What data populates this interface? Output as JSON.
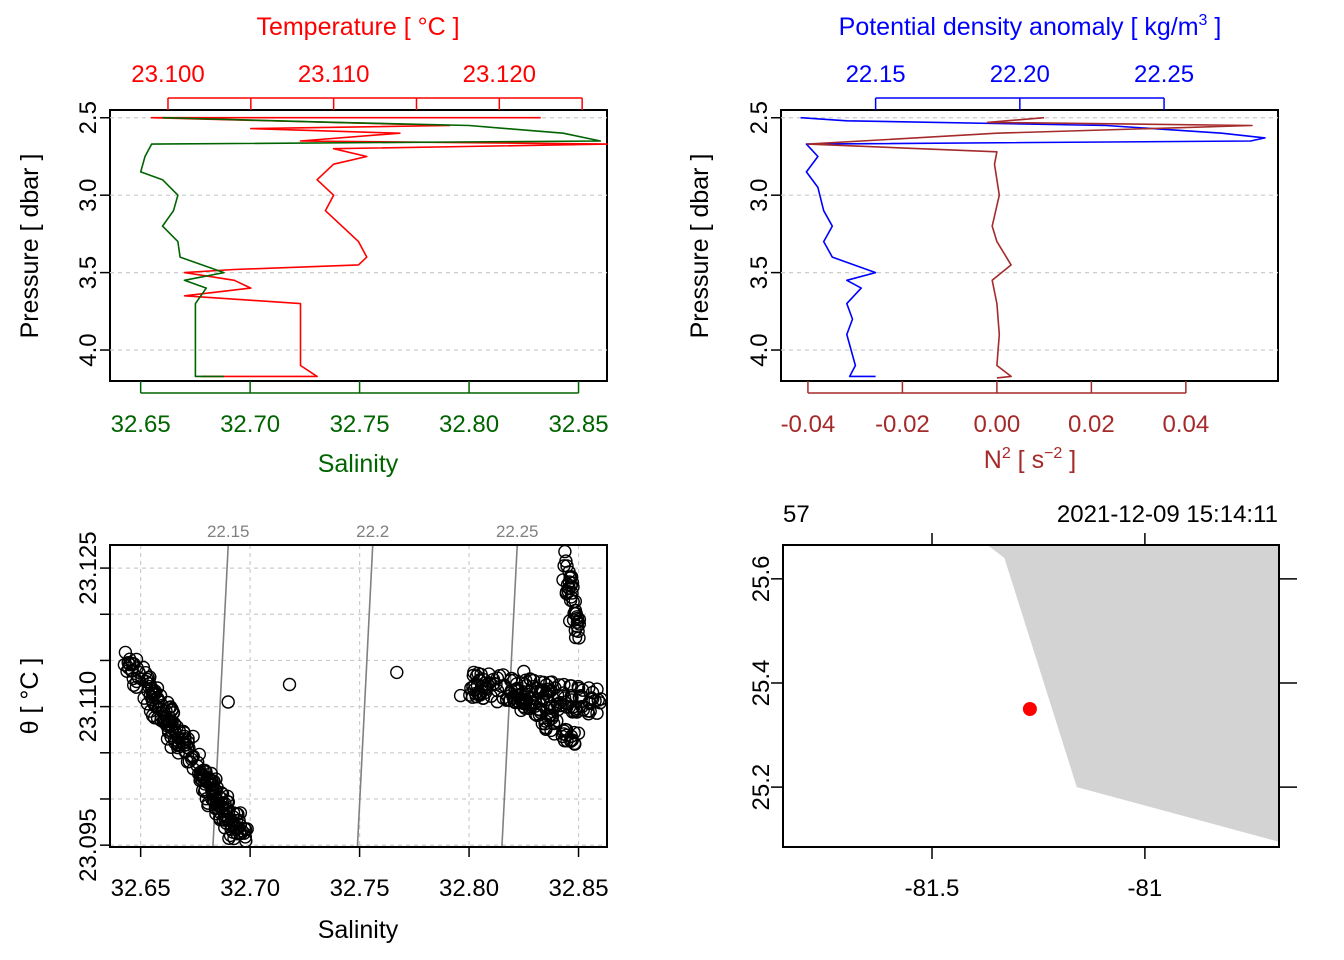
{
  "colors": {
    "temperature": "#ff0000",
    "salinity": "#006400",
    "density": "#0000ff",
    "n2": "#a52a2a",
    "coast": "#d3d3d3",
    "station": "#ff0000",
    "isopycnal": "#808080",
    "grid": "#cccccc"
  },
  "chart_data": [
    {
      "type": "line",
      "panel": "profile-ts",
      "title_top": "Temperature [ °C ]",
      "xlabel_bottom": "Salinity",
      "ylabel": "Pressure [ dbar ]",
      "ylim": [
        4.2,
        2.45
      ],
      "y_ticks": [
        2.5,
        3.0,
        3.5,
        4.0
      ],
      "y_tick_labels": [
        "2.5",
        "3.0",
        "3.5",
        "4.0"
      ],
      "top_axis": {
        "lim": [
          23.0965,
          23.1265
        ],
        "ticks": [
          23.1,
          23.105,
          23.11,
          23.115,
          23.12,
          23.125
        ],
        "labels": [
          "23.100",
          "",
          "23.110",
          "",
          "23.120",
          ""
        ]
      },
      "bottom_axis": {
        "lim": [
          32.636,
          32.863
        ],
        "ticks": [
          32.65,
          32.7,
          32.75,
          32.8,
          32.85
        ],
        "labels": [
          "32.65",
          "32.70",
          "32.75",
          "32.80",
          "32.85"
        ]
      },
      "series": [
        {
          "name": "Temperature",
          "axis": "top",
          "points": [
            [
              23.1225,
              2.5
            ],
            [
              23.099,
              2.5
            ],
            [
              23.117,
              2.55
            ],
            [
              23.105,
              2.57
            ],
            [
              23.114,
              2.6
            ],
            [
              23.108,
              2.65
            ],
            [
              23.1265,
              2.67
            ],
            [
              23.11,
              2.7
            ],
            [
              23.112,
              2.75
            ],
            [
              23.11,
              2.8
            ],
            [
              23.109,
              2.9
            ],
            [
              23.11,
              3.0
            ],
            [
              23.1095,
              3.1
            ],
            [
              23.1105,
              3.2
            ],
            [
              23.1115,
              3.3
            ],
            [
              23.112,
              3.4
            ],
            [
              23.1115,
              3.45
            ],
            [
              23.104,
              3.48
            ],
            [
              23.101,
              3.5
            ],
            [
              23.104,
              3.55
            ],
            [
              23.105,
              3.6
            ],
            [
              23.101,
              3.65
            ],
            [
              23.108,
              3.7
            ],
            [
              23.108,
              3.8
            ],
            [
              23.108,
              3.9
            ],
            [
              23.108,
              4.0
            ],
            [
              23.108,
              4.1
            ],
            [
              23.109,
              4.17
            ],
            [
              23.102,
              4.17
            ]
          ]
        },
        {
          "name": "Salinity",
          "axis": "bottom",
          "points": [
            [
              32.66,
              2.5
            ],
            [
              32.74,
              2.53
            ],
            [
              32.8,
              2.55
            ],
            [
              32.843,
              2.6
            ],
            [
              32.86,
              2.65
            ],
            [
              32.655,
              2.67
            ],
            [
              32.652,
              2.75
            ],
            [
              32.65,
              2.85
            ],
            [
              32.66,
              2.9
            ],
            [
              32.667,
              3.0
            ],
            [
              32.665,
              3.1
            ],
            [
              32.66,
              3.2
            ],
            [
              32.667,
              3.3
            ],
            [
              32.668,
              3.4
            ],
            [
              32.688,
              3.5
            ],
            [
              32.67,
              3.55
            ],
            [
              32.68,
              3.6
            ],
            [
              32.675,
              3.7
            ],
            [
              32.675,
              3.9
            ],
            [
              32.675,
              4.1
            ],
            [
              32.675,
              4.17
            ],
            [
              32.688,
              4.17
            ]
          ]
        }
      ]
    },
    {
      "type": "line",
      "panel": "profile-density",
      "title_top": "Potential density anomaly [ kg/m",
      "title_top_sup": "3",
      "title_top_end": " ]",
      "xlabel_bottom": "N",
      "xlabel_bottom_sup": "2",
      "xlabel_bottom_units": " [ s",
      "xlabel_bottom_units_sup": "−2",
      "xlabel_bottom_end": " ]",
      "ylabel": "Pressure [ dbar ]",
      "ylim": [
        4.2,
        2.45
      ],
      "y_ticks": [
        2.5,
        3.0,
        3.5,
        4.0
      ],
      "y_tick_labels": [
        "2.5",
        "3.0",
        "3.5",
        "4.0"
      ],
      "top_axis": {
        "lim": [
          22.1172,
          22.2895
        ],
        "ticks": [
          22.15,
          22.2,
          22.25
        ],
        "labels": [
          "22.15",
          "22.20",
          "22.25"
        ]
      },
      "bottom_axis": {
        "lim": [
          -0.0457,
          0.0595
        ],
        "ticks": [
          -0.04,
          -0.02,
          0.0,
          0.02,
          0.04
        ],
        "labels": [
          "-0.04",
          "-0.02",
          "0.00",
          "0.02",
          "0.04"
        ]
      },
      "series": [
        {
          "name": "Potential density anomaly",
          "axis": "top",
          "points": [
            [
              22.124,
              2.5
            ],
            [
              22.14,
              2.52
            ],
            [
              22.23,
              2.55
            ],
            [
              22.27,
              2.6
            ],
            [
              22.285,
              2.63
            ],
            [
              22.28,
              2.65
            ],
            [
              22.126,
              2.67
            ],
            [
              22.13,
              2.75
            ],
            [
              22.126,
              2.85
            ],
            [
              22.13,
              2.95
            ],
            [
              22.132,
              3.1
            ],
            [
              22.135,
              3.2
            ],
            [
              22.132,
              3.3
            ],
            [
              22.135,
              3.4
            ],
            [
              22.15,
              3.5
            ],
            [
              22.14,
              3.55
            ],
            [
              22.145,
              3.6
            ],
            [
              22.14,
              3.7
            ],
            [
              22.142,
              3.8
            ],
            [
              22.14,
              3.9
            ],
            [
              22.143,
              4.1
            ],
            [
              22.141,
              4.17
            ],
            [
              22.15,
              4.17
            ]
          ]
        },
        {
          "name": "N2",
          "axis": "bottom",
          "points": [
            [
              0.01,
              2.5
            ],
            [
              -0.002,
              2.53
            ],
            [
              0.054,
              2.55
            ],
            [
              0.0,
              2.6
            ],
            [
              -0.04,
              2.67
            ],
            [
              0.0,
              2.72
            ],
            [
              -0.0005,
              2.8
            ],
            [
              0.0005,
              3.0
            ],
            [
              -0.001,
              3.2
            ],
            [
              0.0,
              3.3
            ],
            [
              0.003,
              3.45
            ],
            [
              -0.001,
              3.55
            ],
            [
              0.0,
              3.7
            ],
            [
              0.0005,
              3.9
            ],
            [
              0.0,
              4.1
            ],
            [
              0.003,
              4.17
            ],
            [
              0.0,
              4.18
            ]
          ]
        }
      ]
    },
    {
      "type": "scatter",
      "panel": "ts-diagram",
      "xlabel": "Salinity",
      "ylabel": "θ [ °C ]",
      "xlim": [
        32.636,
        32.863
      ],
      "ylim": [
        23.0948,
        23.1275
      ],
      "x_ticks": [
        32.65,
        32.7,
        32.75,
        32.8,
        32.85
      ],
      "x_tick_labels": [
        "32.65",
        "32.70",
        "32.75",
        "32.80",
        "32.85"
      ],
      "y_ticks": [
        23.095,
        23.1,
        23.105,
        23.11,
        23.115,
        23.12,
        23.125
      ],
      "y_tick_labels": [
        "23.095",
        "",
        "",
        "23.110",
        "",
        "",
        "23.125"
      ],
      "isopycnals": [
        {
          "label": "22.15",
          "bottom_x": 32.683,
          "top_x": 32.69
        },
        {
          "label": "22.2",
          "bottom_x": 32.749,
          "top_x": 32.756
        },
        {
          "label": "22.25",
          "bottom_x": 32.815,
          "top_x": 32.822
        }
      ],
      "clusters": [
        {
          "s0": 32.646,
          "s1": 32.696,
          "t0": 23.1148,
          "t1": 23.0958,
          "n": 240,
          "spread_s": 0.004,
          "spread_t": 0.0012
        },
        {
          "s0": 32.8,
          "s1": 32.86,
          "t0": 23.1125,
          "t1": 23.1105,
          "n": 150,
          "spread_s": 0.004,
          "spread_t": 0.0015
        },
        {
          "s0": 32.82,
          "s1": 32.85,
          "t0": 23.1115,
          "t1": 23.106,
          "n": 60,
          "spread_s": 0.002,
          "spread_t": 0.001
        },
        {
          "s0": 32.843,
          "s1": 32.85,
          "t0": 23.1265,
          "t1": 23.117,
          "n": 40,
          "spread_s": 0.002,
          "spread_t": 0.0008
        }
      ],
      "outliers": [
        [
          32.69,
          23.1105
        ],
        [
          32.718,
          23.1124
        ],
        [
          32.767,
          23.1137
        ],
        [
          32.825,
          23.1138
        ],
        [
          32.805,
          23.1128
        ]
      ]
    },
    {
      "type": "map",
      "panel": "station-map",
      "top_left_label": "57",
      "top_right_label": "2021-12-09 15:14:11",
      "xlim": [
        -81.85,
        -80.685
      ],
      "ylim": [
        25.085,
        25.665
      ],
      "x_ticks": [
        -81.5,
        -81.0
      ],
      "x_tick_labels": [
        "-81.5",
        "-81"
      ],
      "y_ticks": [
        25.2,
        25.4,
        25.6
      ],
      "y_tick_labels": [
        "25.2",
        "25.4",
        "25.6"
      ],
      "coastline": [
        [
          -81.37,
          25.665
        ],
        [
          -81.33,
          25.64
        ],
        [
          -81.16,
          25.2
        ],
        [
          -80.685,
          25.095
        ],
        [
          -80.685,
          25.665
        ]
      ],
      "station": {
        "lon": -81.27,
        "lat": 25.35
      }
    }
  ]
}
